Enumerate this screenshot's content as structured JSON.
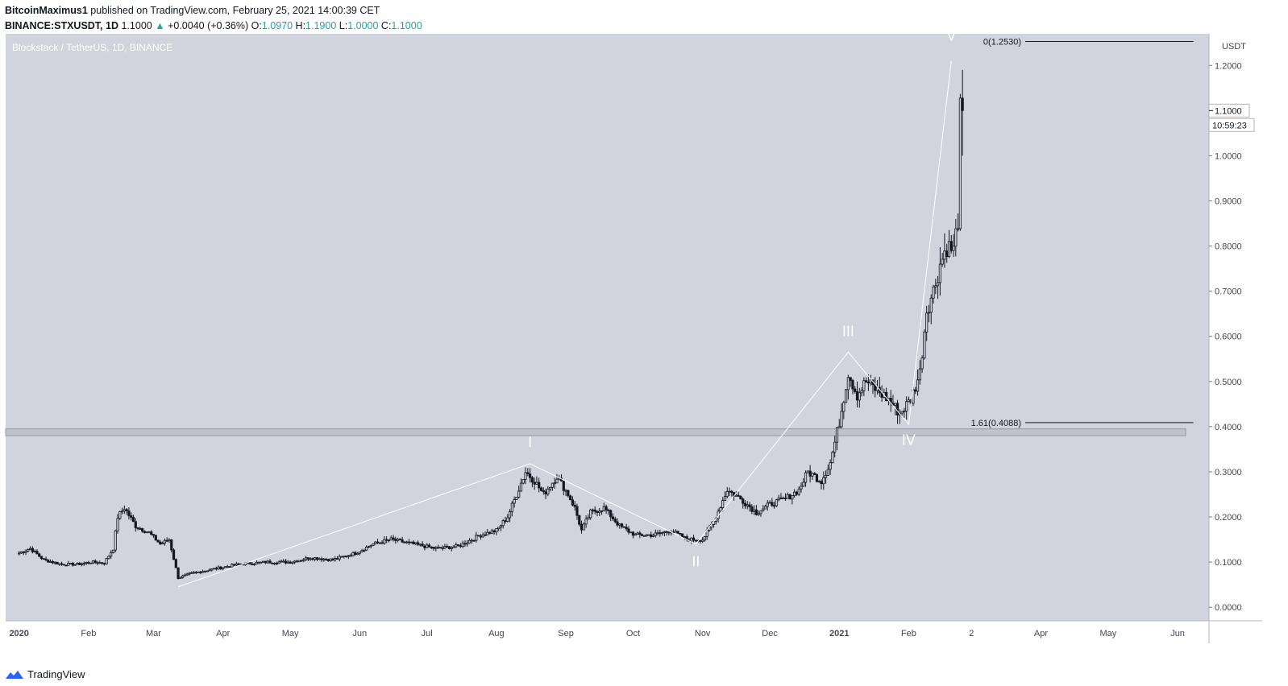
{
  "header": {
    "author": "BitcoinMaximus1",
    "published_text": "published on TradingView.com, February 25, 2021 14:00:39 CET",
    "symbol": "BINANCE:STXUSDT, 1D",
    "last": "1.1000",
    "change": "+0.0040 (+0.36%)",
    "o_label": "O:",
    "o_value": "1.0970",
    "h_label": "H:",
    "h_value": "1.1900",
    "l_label": "L:",
    "l_value": "1.0000",
    "c_label": "C:",
    "c_value": "1.1000"
  },
  "footer": {
    "brand": "TradingView",
    "icon": "tradingview-logo-icon"
  },
  "colors": {
    "plot_bg": "#d1d4dc",
    "candle": "#131722",
    "wave_line": "#ffffff",
    "support_zone": "#b2b5be",
    "accent_up": "#26a69a"
  },
  "chart_data": {
    "type": "candlestick",
    "title": "Blockstack / TetherUS, 1D, BINANCE",
    "ylabel": "USDT",
    "ylim": [
      -0.03,
      1.27
    ],
    "y_ticks": [
      "0.0000",
      "0.1000",
      "0.2000",
      "0.3000",
      "0.4000",
      "0.5000",
      "0.6000",
      "0.7000",
      "0.8000",
      "0.9000",
      "1.0000",
      "1.2000"
    ],
    "y_tick_values": [
      0,
      0.1,
      0.2,
      0.3,
      0.4,
      0.5,
      0.6,
      0.7,
      0.8,
      0.9,
      1.0,
      1.2
    ],
    "x_ticks": [
      "2020",
      "Feb",
      "Mar",
      "Apr",
      "May",
      "Jun",
      "Jul",
      "Aug",
      "Sep",
      "Oct",
      "Nov",
      "Dec",
      "2021",
      "Feb",
      "2",
      "Apr",
      "May",
      "Jun"
    ],
    "x_tick_dates": [
      "2020-01-01",
      "2020-02-01",
      "2020-03-01",
      "2020-04-01",
      "2020-05-01",
      "2020-06-01",
      "2020-07-01",
      "2020-08-01",
      "2020-09-01",
      "2020-10-01",
      "2020-11-01",
      "2020-12-01",
      "2021-01-01",
      "2021-02-01",
      "2021-03-01",
      "2021-04-01",
      "2021-05-01",
      "2021-06-01"
    ],
    "xlim": [
      "2019-12-26",
      "2021-06-15"
    ],
    "price_label": "1.1000",
    "price_value": 1.1,
    "countdown_label": "10:59:23",
    "fib_levels": [
      {
        "label": "0(1.2530)",
        "value": 1.253,
        "from": "2021-03-25",
        "to": "2021-06-08"
      },
      {
        "label": "1.61(0.4088)",
        "value": 0.4088,
        "from": "2021-03-25",
        "to": "2021-06-08"
      }
    ],
    "support_zone": {
      "low": 0.38,
      "high": 0.395
    },
    "waves": [
      {
        "label": "I",
        "date": "2020-08-16",
        "value": 0.318,
        "label_y": 0.355
      },
      {
        "label": "II",
        "date": "2020-10-29",
        "value": 0.14,
        "label_y": 0.09
      },
      {
        "label": "III",
        "date": "2021-01-05",
        "value": 0.565,
        "label_y": 0.6
      },
      {
        "label": "IV",
        "date": "2021-02-01",
        "value": 0.405,
        "label_y": 0.36
      },
      {
        "label": "V",
        "date": "2021-02-20",
        "value": 1.21,
        "label_y": 1.255
      }
    ],
    "wave_path": [
      {
        "date": "2020-03-12",
        "value": 0.045
      },
      {
        "date": "2020-08-16",
        "value": 0.318
      },
      {
        "date": "2020-10-29",
        "value": 0.14
      },
      {
        "date": "2021-01-05",
        "value": 0.565
      },
      {
        "date": "2021-02-01",
        "value": 0.405
      },
      {
        "date": "2021-02-20",
        "value": 1.21
      }
    ],
    "series": [
      {
        "values": [
          [
            "2020-01-01",
            0.12
          ],
          [
            "2020-01-06",
            0.13
          ],
          [
            "2020-01-12",
            0.105
          ],
          [
            "2020-01-20",
            0.095
          ],
          [
            "2020-01-27",
            0.095
          ],
          [
            "2020-02-02",
            0.1
          ],
          [
            "2020-02-08",
            0.098
          ],
          [
            "2020-02-12",
            0.13
          ],
          [
            "2020-02-14",
            0.2
          ],
          [
            "2020-02-17",
            0.22
          ],
          [
            "2020-02-22",
            0.18
          ],
          [
            "2020-02-28",
            0.165
          ],
          [
            "2020-03-04",
            0.14
          ],
          [
            "2020-03-08",
            0.15
          ],
          [
            "2020-03-12",
            0.065
          ],
          [
            "2020-03-18",
            0.075
          ],
          [
            "2020-03-28",
            0.085
          ],
          [
            "2020-04-08",
            0.095
          ],
          [
            "2020-04-20",
            0.1
          ],
          [
            "2020-05-01",
            0.1
          ],
          [
            "2020-05-10",
            0.11
          ],
          [
            "2020-05-20",
            0.105
          ],
          [
            "2020-05-30",
            0.12
          ],
          [
            "2020-06-07",
            0.14
          ],
          [
            "2020-06-15",
            0.15
          ],
          [
            "2020-06-25",
            0.14
          ],
          [
            "2020-07-05",
            0.13
          ],
          [
            "2020-07-15",
            0.135
          ],
          [
            "2020-07-25",
            0.16
          ],
          [
            "2020-08-01",
            0.17
          ],
          [
            "2020-08-06",
            0.2
          ],
          [
            "2020-08-10",
            0.25
          ],
          [
            "2020-08-14",
            0.3
          ],
          [
            "2020-08-18",
            0.28
          ],
          [
            "2020-08-22",
            0.25
          ],
          [
            "2020-08-28",
            0.29
          ],
          [
            "2020-09-02",
            0.25
          ],
          [
            "2020-09-05",
            0.22
          ],
          [
            "2020-09-08",
            0.17
          ],
          [
            "2020-09-12",
            0.21
          ],
          [
            "2020-09-18",
            0.22
          ],
          [
            "2020-09-25",
            0.18
          ],
          [
            "2020-10-02",
            0.16
          ],
          [
            "2020-10-10",
            0.16
          ],
          [
            "2020-10-18",
            0.17
          ],
          [
            "2020-10-25",
            0.15
          ],
          [
            "2020-11-01",
            0.15
          ],
          [
            "2020-11-06",
            0.19
          ],
          [
            "2020-11-12",
            0.26
          ],
          [
            "2020-11-18",
            0.24
          ],
          [
            "2020-11-25",
            0.21
          ],
          [
            "2020-12-02",
            0.23
          ],
          [
            "2020-12-08",
            0.24
          ],
          [
            "2020-12-14",
            0.26
          ],
          [
            "2020-12-18",
            0.3
          ],
          [
            "2020-12-24",
            0.28
          ],
          [
            "2020-12-28",
            0.32
          ],
          [
            "2021-01-01",
            0.41
          ],
          [
            "2021-01-05",
            0.52
          ],
          [
            "2021-01-09",
            0.47
          ],
          [
            "2021-01-13",
            0.5
          ],
          [
            "2021-01-18",
            0.48
          ],
          [
            "2021-01-23",
            0.46
          ],
          [
            "2021-01-28",
            0.43
          ],
          [
            "2021-02-02",
            0.46
          ],
          [
            "2021-02-06",
            0.52
          ],
          [
            "2021-02-09",
            0.66
          ],
          [
            "2021-02-12",
            0.7
          ],
          [
            "2021-02-15",
            0.76
          ],
          [
            "2021-02-18",
            0.8
          ],
          [
            "2021-02-21",
            0.79
          ],
          [
            "2021-02-23",
            0.86
          ],
          [
            "2021-02-24",
            1.097
          ],
          [
            "2021-02-25",
            1.1
          ]
        ]
      }
    ]
  }
}
